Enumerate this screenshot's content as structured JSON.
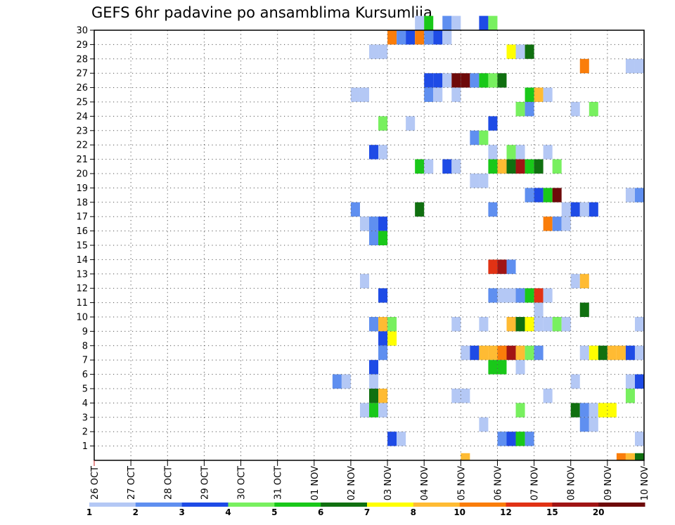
{
  "chart_data": {
    "type": "heatmap",
    "title": "GEFS 6hr padavine po ansamblima Kursumlija",
    "xlabel": "",
    "ylabel": "",
    "x_ticks": [
      "26 OCT",
      "27 OCT",
      "28 OCT",
      "29 OCT",
      "30 OCT",
      "31 OCT",
      "01 NOV",
      "02 NOV",
      "03 NOV",
      "04 NOV",
      "05 NOV",
      "06 NOV",
      "07 NOV",
      "08 NOV",
      "09 NOV",
      "10 NOV"
    ],
    "y_ticks": [
      "1",
      "2",
      "3",
      "4",
      "5",
      "6",
      "7",
      "8",
      "9",
      "10",
      "11",
      "12",
      "13",
      "14",
      "15",
      "16",
      "17",
      "18",
      "19",
      "20",
      "21",
      "22",
      "23",
      "24",
      "25",
      "26",
      "27",
      "28",
      "29",
      "30"
    ],
    "x_unit": "6-hour step (4 steps per day) from 26 OCT",
    "y_range": [
      0,
      30
    ],
    "grid": true,
    "legend": {
      "placement": "bottom",
      "thresholds": [
        "1",
        "2",
        "3",
        "4",
        "5",
        "6",
        "7",
        "8",
        "10",
        "12",
        "15",
        "20"
      ],
      "colors": [
        "#b4c8f5",
        "#5f8ff0",
        "#1e4be6",
        "#78f05f",
        "#19c819",
        "#107010",
        "#ffff00",
        "#ffbb33",
        "#fa7d0a",
        "#e13214",
        "#a01414",
        "#6e0a0a"
      ]
    },
    "cells": [
      {
        "member": 30,
        "steps": [
          [
            35,
            1
          ],
          [
            36,
            5
          ],
          [
            38,
            2
          ],
          [
            39,
            1
          ],
          [
            42,
            3
          ],
          [
            43,
            4
          ]
        ]
      },
      {
        "member": 29,
        "steps": [
          [
            32,
            9
          ],
          [
            33,
            2
          ],
          [
            34,
            3
          ],
          [
            35,
            9
          ],
          [
            36,
            2
          ],
          [
            37,
            3
          ],
          [
            38,
            1
          ]
        ]
      },
      {
        "member": 28,
        "steps": [
          [
            30,
            1
          ],
          [
            31,
            1
          ],
          [
            45,
            7
          ],
          [
            46,
            1
          ],
          [
            47,
            6
          ]
        ]
      },
      {
        "member": 27,
        "steps": [
          [
            53,
            9
          ],
          [
            58,
            1
          ],
          [
            59,
            1
          ]
        ]
      },
      {
        "member": 26,
        "steps": [
          [
            36,
            3
          ],
          [
            37,
            3
          ],
          [
            38,
            1
          ],
          [
            39,
            12
          ],
          [
            40,
            12
          ],
          [
            41,
            2
          ],
          [
            42,
            5
          ],
          [
            43,
            4
          ],
          [
            44,
            6
          ]
        ]
      },
      {
        "member": 25,
        "steps": [
          [
            28,
            1
          ],
          [
            29,
            1
          ],
          [
            36,
            2
          ],
          [
            37,
            1
          ],
          [
            39,
            1
          ],
          [
            47,
            5
          ],
          [
            48,
            8
          ],
          [
            49,
            1
          ]
        ]
      },
      {
        "member": 24,
        "steps": [
          [
            46,
            4
          ],
          [
            47,
            2
          ],
          [
            52,
            1
          ],
          [
            54,
            4
          ]
        ]
      },
      {
        "member": 23,
        "steps": [
          [
            31,
            4
          ],
          [
            34,
            1
          ],
          [
            43,
            3
          ]
        ]
      },
      {
        "member": 22,
        "steps": [
          [
            41,
            2
          ],
          [
            42,
            4
          ]
        ]
      },
      {
        "member": 21,
        "steps": [
          [
            30,
            3
          ],
          [
            31,
            1
          ],
          [
            43,
            1
          ],
          [
            45,
            4
          ],
          [
            46,
            1
          ],
          [
            49,
            1
          ]
        ]
      },
      {
        "member": 20,
        "steps": [
          [
            35,
            5
          ],
          [
            36,
            1
          ],
          [
            38,
            3
          ],
          [
            39,
            1
          ],
          [
            43,
            5
          ],
          [
            44,
            8
          ],
          [
            45,
            6
          ],
          [
            46,
            11
          ],
          [
            47,
            5
          ],
          [
            48,
            6
          ],
          [
            50,
            4
          ]
        ]
      },
      {
        "member": 19,
        "steps": [
          [
            41,
            1
          ],
          [
            42,
            1
          ]
        ]
      },
      {
        "member": 18,
        "steps": [
          [
            47,
            2
          ],
          [
            48,
            3
          ],
          [
            49,
            5
          ],
          [
            50,
            12
          ],
          [
            58,
            1
          ],
          [
            59,
            2
          ]
        ]
      },
      {
        "member": 17,
        "steps": [
          [
            28,
            2
          ],
          [
            35,
            6
          ],
          [
            43,
            2
          ],
          [
            51,
            1
          ],
          [
            52,
            3
          ],
          [
            53,
            1
          ],
          [
            54,
            3
          ]
        ]
      },
      {
        "member": 16,
        "steps": [
          [
            29,
            1
          ],
          [
            30,
            2
          ],
          [
            31,
            3
          ],
          [
            49,
            9
          ],
          [
            50,
            2
          ],
          [
            51,
            1
          ]
        ]
      },
      {
        "member": 15,
        "steps": [
          [
            30,
            2
          ],
          [
            31,
            5
          ],
          [
            60,
            1
          ]
        ]
      },
      {
        "member": 13,
        "steps": [
          [
            43,
            10
          ],
          [
            44,
            11
          ],
          [
            45,
            2
          ]
        ]
      },
      {
        "member": 12,
        "steps": [
          [
            29,
            1
          ],
          [
            52,
            1
          ],
          [
            53,
            8
          ]
        ]
      },
      {
        "member": 11,
        "steps": [
          [
            31,
            3
          ],
          [
            43,
            2
          ],
          [
            44,
            1
          ],
          [
            45,
            1
          ],
          [
            46,
            2
          ],
          [
            47,
            5
          ],
          [
            48,
            10
          ],
          [
            49,
            1
          ]
        ]
      },
      {
        "member": 10,
        "steps": [
          [
            48,
            1
          ],
          [
            53,
            6
          ]
        ]
      },
      {
        "member": 9,
        "steps": [
          [
            30,
            2
          ],
          [
            31,
            8
          ],
          [
            32,
            4
          ],
          [
            39,
            1
          ],
          [
            42,
            1
          ],
          [
            45,
            8
          ],
          [
            46,
            6
          ],
          [
            47,
            7
          ],
          [
            48,
            1
          ],
          [
            49,
            1
          ],
          [
            50,
            4
          ],
          [
            51,
            1
          ],
          [
            59,
            1
          ]
        ]
      },
      {
        "member": 8,
        "steps": [
          [
            31,
            3
          ],
          [
            32,
            7
          ]
        ]
      },
      {
        "member": 7,
        "steps": [
          [
            31,
            2
          ],
          [
            40,
            1
          ],
          [
            41,
            3
          ],
          [
            42,
            8
          ],
          [
            43,
            8
          ],
          [
            44,
            9
          ],
          [
            45,
            11
          ],
          [
            46,
            8
          ],
          [
            47,
            4
          ],
          [
            48,
            2
          ],
          [
            53,
            1
          ],
          [
            54,
            7
          ],
          [
            55,
            6
          ],
          [
            56,
            8
          ],
          [
            57,
            8
          ],
          [
            58,
            3
          ],
          [
            59,
            1
          ]
        ]
      },
      {
        "member": 6,
        "steps": [
          [
            30,
            3
          ],
          [
            43,
            5
          ],
          [
            44,
            5
          ],
          [
            46,
            1
          ]
        ]
      },
      {
        "member": 5,
        "steps": [
          [
            26,
            2
          ],
          [
            27,
            1
          ],
          [
            30,
            1
          ],
          [
            52,
            1
          ],
          [
            58,
            1
          ],
          [
            59,
            3
          ],
          [
            60,
            7
          ]
        ]
      },
      {
        "member": 4,
        "steps": [
          [
            30,
            6
          ],
          [
            31,
            8
          ],
          [
            39,
            1
          ],
          [
            40,
            1
          ],
          [
            49,
            1
          ],
          [
            58,
            4
          ]
        ]
      },
      {
        "member": 3,
        "steps": [
          [
            29,
            1
          ],
          [
            30,
            5
          ],
          [
            31,
            1
          ],
          [
            46,
            4
          ],
          [
            52,
            6
          ],
          [
            53,
            2
          ],
          [
            54,
            1
          ],
          [
            55,
            7
          ],
          [
            56,
            7
          ]
        ]
      },
      {
        "member": 2,
        "steps": [
          [
            42,
            1
          ],
          [
            53,
            2
          ],
          [
            54,
            1
          ]
        ]
      },
      {
        "member": 1,
        "steps": [
          [
            32,
            3
          ],
          [
            33,
            1
          ],
          [
            44,
            2
          ],
          [
            45,
            3
          ],
          [
            46,
            5
          ],
          [
            47,
            2
          ],
          [
            59,
            1
          ]
        ]
      },
      {
        "member": 0,
        "steps": [
          [
            40,
            8
          ],
          [
            57,
            9
          ],
          [
            58,
            8
          ],
          [
            59,
            6
          ]
        ]
      }
    ]
  }
}
